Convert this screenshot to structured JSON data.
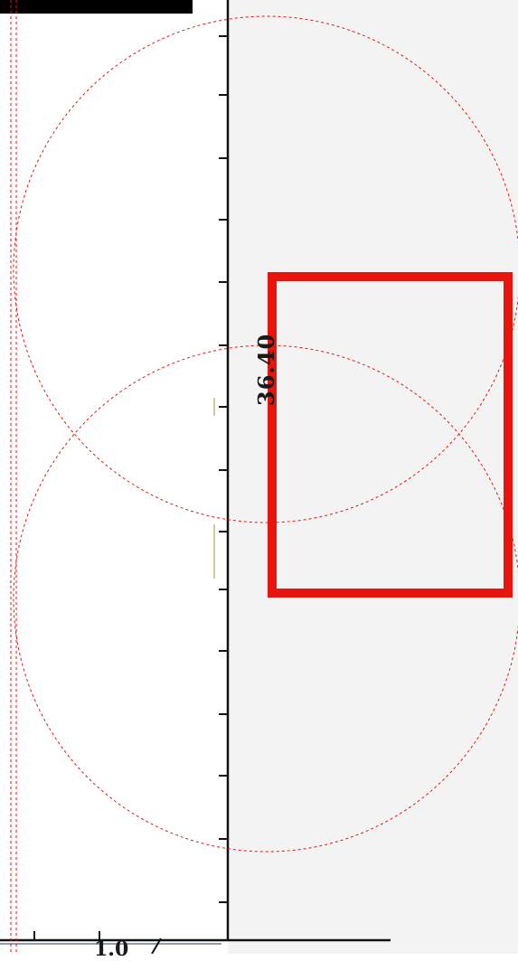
{
  "labels": {
    "vertical_value": "36.40",
    "bottom_value": "1.0"
  },
  "colors": {
    "annotation_red": "#e8150f",
    "axis_black": "#111111",
    "paper_grey": "#f3f3f3",
    "header_bar": "#000000"
  },
  "annotations": {
    "circles": 2,
    "rectangles": 1,
    "guide_lines": 2
  }
}
